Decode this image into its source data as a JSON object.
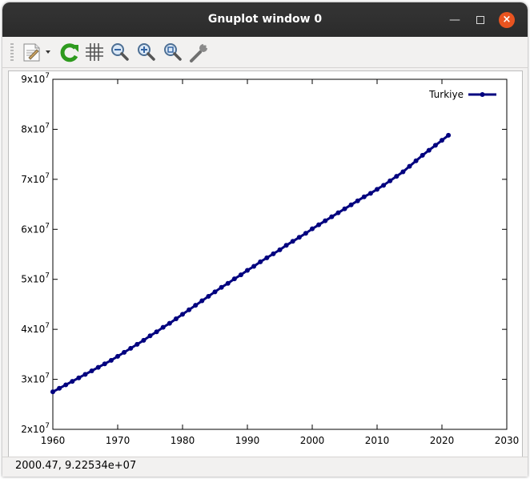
{
  "window": {
    "title": "Gnuplot window 0"
  },
  "status": {
    "text": "2000.47,  9.22534e+07"
  },
  "colors": {
    "series": "#00007f",
    "close": "#e95420",
    "titlebar": "#2f2f2f"
  },
  "toolbar": {
    "icons": [
      "copy-to-clipboard-icon",
      "replot-icon",
      "grid-icon",
      "zoom-out-icon",
      "zoom-in-icon",
      "zoom-fit-icon",
      "options-wrench-icon"
    ]
  },
  "chart_data": {
    "type": "line",
    "title": "",
    "xlabel": "",
    "ylabel": "",
    "xlim": [
      1960,
      2030
    ],
    "ylim": [
      20000000,
      90000000
    ],
    "xticks": [
      "1960",
      "1970",
      "1980",
      "1990",
      "2000",
      "2010",
      "2020",
      "2030"
    ],
    "yticks": [
      {
        "mant": "2x10",
        "exp": "7"
      },
      {
        "mant": "3x10",
        "exp": "7"
      },
      {
        "mant": "4x10",
        "exp": "7"
      },
      {
        "mant": "5x10",
        "exp": "7"
      },
      {
        "mant": "6x10",
        "exp": "7"
      },
      {
        "mant": "7x10",
        "exp": "7"
      },
      {
        "mant": "8x10",
        "exp": "7"
      },
      {
        "mant": "9x10",
        "exp": "7"
      }
    ],
    "legend_position": "top-right",
    "grid": false,
    "series": [
      {
        "name": "Turkiye",
        "x": [
          1960,
          1961,
          1962,
          1963,
          1964,
          1965,
          1966,
          1967,
          1968,
          1969,
          1970,
          1971,
          1972,
          1973,
          1974,
          1975,
          1976,
          1977,
          1978,
          1979,
          1980,
          1981,
          1982,
          1983,
          1984,
          1985,
          1986,
          1987,
          1988,
          1989,
          1990,
          1991,
          1992,
          1993,
          1994,
          1995,
          1996,
          1997,
          1998,
          1999,
          2000,
          2001,
          2002,
          2003,
          2004,
          2005,
          2006,
          2007,
          2008,
          2009,
          2010,
          2011,
          2012,
          2013,
          2014,
          2015,
          2016,
          2017,
          2018,
          2019,
          2020,
          2021
        ],
        "y": [
          27500000,
          28200000,
          28900000,
          29600000,
          30300000,
          31000000,
          31700000,
          32400000,
          33100000,
          33800000,
          34600000,
          35400000,
          36200000,
          37000000,
          37800000,
          38700000,
          39500000,
          40400000,
          41200000,
          42100000,
          43000000,
          43900000,
          44800000,
          45700000,
          46600000,
          47500000,
          48400000,
          49200000,
          50100000,
          50900000,
          51800000,
          52600000,
          53500000,
          54300000,
          55100000,
          55900000,
          56800000,
          57600000,
          58400000,
          59200000,
          60100000,
          60900000,
          61700000,
          62500000,
          63300000,
          64100000,
          64900000,
          65700000,
          66500000,
          67200000,
          68000000,
          68800000,
          69700000,
          70600000,
          71500000,
          72600000,
          73700000,
          74800000,
          75800000,
          76800000,
          77800000,
          78800000
        ]
      }
    ]
  }
}
